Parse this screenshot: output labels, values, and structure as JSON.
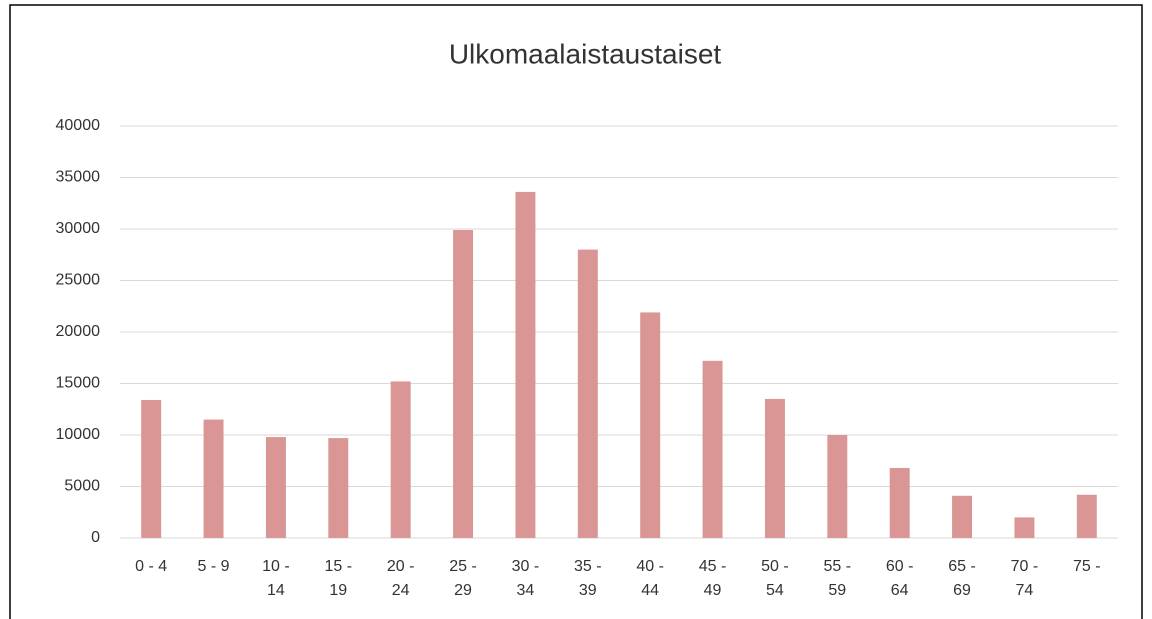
{
  "chart_data": {
    "type": "bar",
    "title": "Ulkomaalaistaustaiset",
    "categories": [
      "0 - 4",
      "5 - 9",
      "10 - 14",
      "15 - 19",
      "20 - 24",
      "25 - 29",
      "30 - 34",
      "35 - 39",
      "40 - 44",
      "45 - 49",
      "50 - 54",
      "55 - 59",
      "60 - 64",
      "65 - 69",
      "70 - 74",
      "75 -"
    ],
    "values": [
      13400,
      11500,
      9800,
      9700,
      15200,
      29900,
      33600,
      28000,
      21900,
      17200,
      13500,
      10000,
      6800,
      4100,
      2000,
      4200
    ],
    "color": "#d99694",
    "ylim": [
      0,
      40000
    ],
    "yticks": [
      0,
      5000,
      10000,
      15000,
      20000,
      25000,
      30000,
      35000,
      40000
    ],
    "grid": true
  }
}
